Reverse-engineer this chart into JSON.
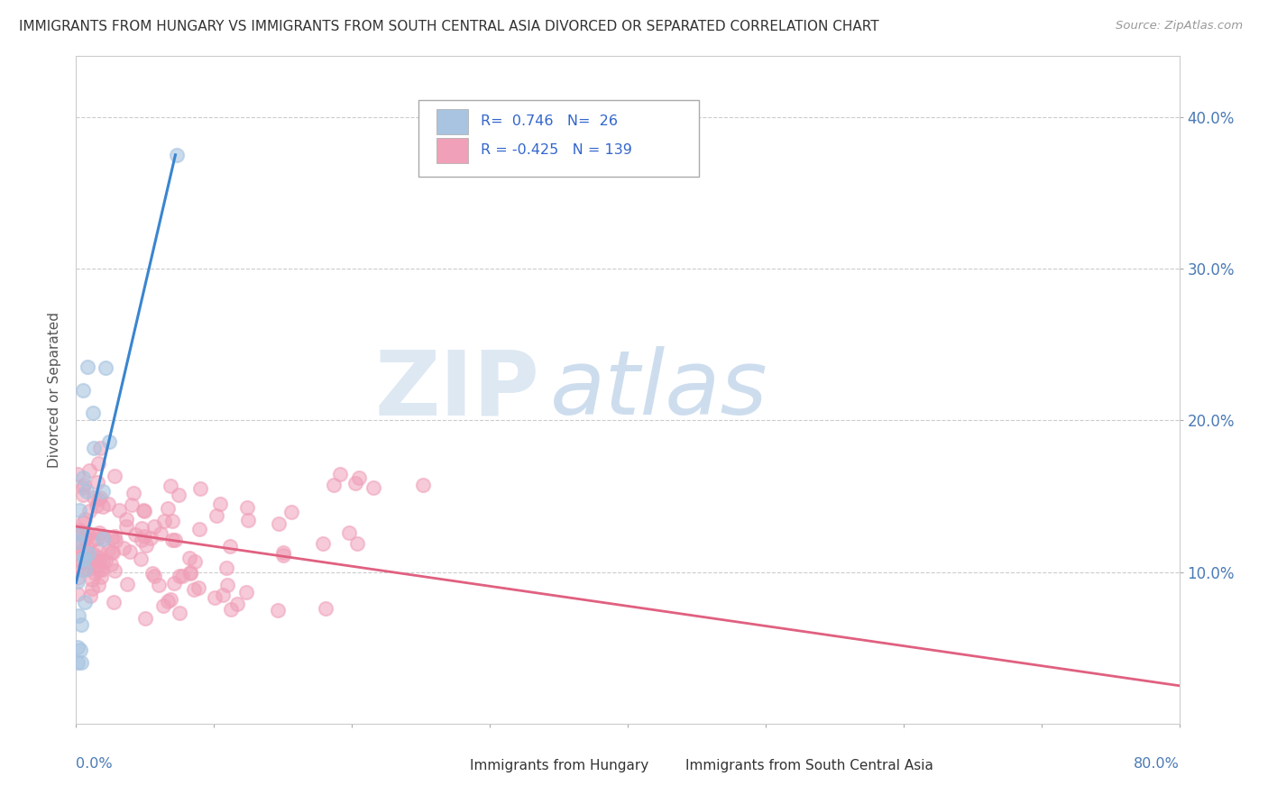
{
  "title": "IMMIGRANTS FROM HUNGARY VS IMMIGRANTS FROM SOUTH CENTRAL ASIA DIVORCED OR SEPARATED CORRELATION CHART",
  "source": "Source: ZipAtlas.com",
  "ylabel": "Divorced or Separated",
  "legend_blue_label": "Immigrants from Hungary",
  "legend_pink_label": "Immigrants from South Central Asia",
  "R_blue": 0.746,
  "N_blue": 26,
  "R_pink": -0.425,
  "N_pink": 139,
  "blue_color": "#a8c4e0",
  "pink_color": "#f0a0b8",
  "blue_line_color": "#3a85d0",
  "pink_line_color": "#e06080",
  "xlim": [
    0.0,
    0.8
  ],
  "ylim": [
    0.0,
    0.44
  ],
  "ytick_labels_right": [
    "10.0%",
    "20.0%",
    "30.0%",
    "40.0%"
  ],
  "ytick_values": [
    0.1,
    0.2,
    0.3,
    0.4
  ],
  "blue_line_x0": 0.0,
  "blue_line_y0": 0.093,
  "blue_line_x1": 0.072,
  "blue_line_y1": 0.375,
  "pink_line_x0": 0.0,
  "pink_line_y0": 0.13,
  "pink_line_x1": 0.8,
  "pink_line_y1": 0.025
}
